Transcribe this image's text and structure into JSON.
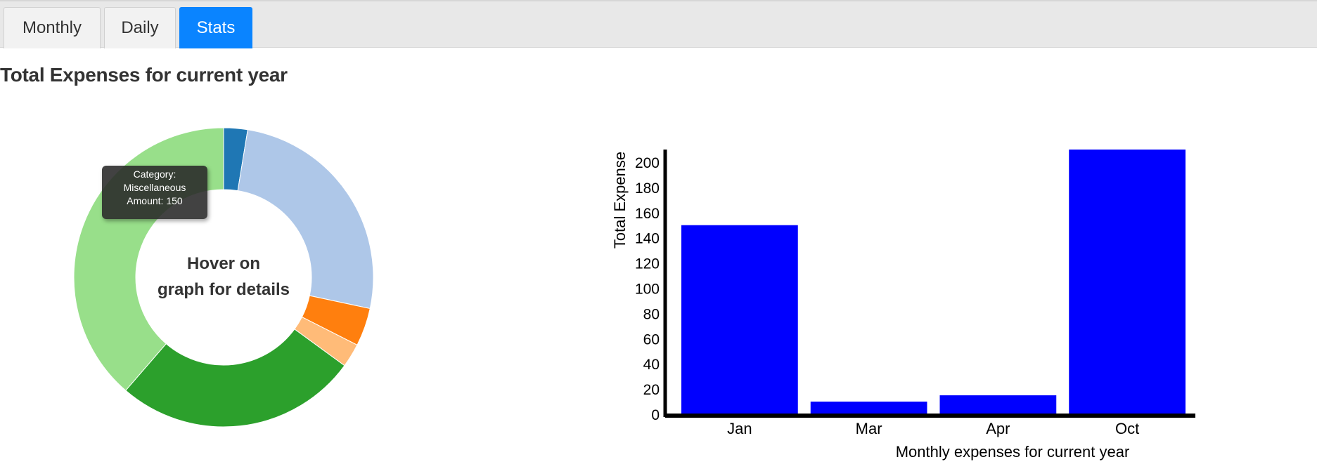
{
  "tabs": [
    {
      "label": "Monthly",
      "active": false
    },
    {
      "label": "Daily",
      "active": false
    },
    {
      "label": "Stats",
      "active": true
    }
  ],
  "page_title": "Total Expenses for current year",
  "donut": {
    "center_line1": "Hover on",
    "center_line2": "graph for details",
    "tooltip": {
      "line1": "Category:",
      "line2": "Miscellaneous",
      "line3": "Amount: 150"
    }
  },
  "colors": {
    "tab_active": "#0a84ff",
    "bar": "#0000ff",
    "axis": "#000000",
    "slices": [
      "#1f77b4",
      "#aec7e8",
      "#ff7f0e",
      "#ffbb78",
      "#2ca02c",
      "#98df8a"
    ]
  },
  "chart_data": [
    {
      "type": "pie",
      "variant": "donut",
      "slices": [
        {
          "value": 10,
          "color": "#1f77b4"
        },
        {
          "value": 100,
          "color": "#aec7e8"
        },
        {
          "value": 16,
          "color": "#ff7f0e"
        },
        {
          "value": 10,
          "color": "#ffbb78"
        },
        {
          "value": 102,
          "color": "#2ca02c"
        },
        {
          "value": 150,
          "color": "#98df8a",
          "category": "Miscellaneous"
        }
      ]
    },
    {
      "type": "bar",
      "categories": [
        "Jan",
        "Mar",
        "Apr",
        "Oct"
      ],
      "values": [
        150,
        10,
        15,
        210
      ],
      "xlabel": "Monthly expenses for current year",
      "ylabel": "Total Expense",
      "ylim": [
        0,
        210
      ],
      "yticks": [
        0,
        20,
        40,
        60,
        80,
        100,
        120,
        140,
        160,
        180,
        200
      ],
      "grid": false,
      "bar_color": "#0000ff"
    }
  ]
}
